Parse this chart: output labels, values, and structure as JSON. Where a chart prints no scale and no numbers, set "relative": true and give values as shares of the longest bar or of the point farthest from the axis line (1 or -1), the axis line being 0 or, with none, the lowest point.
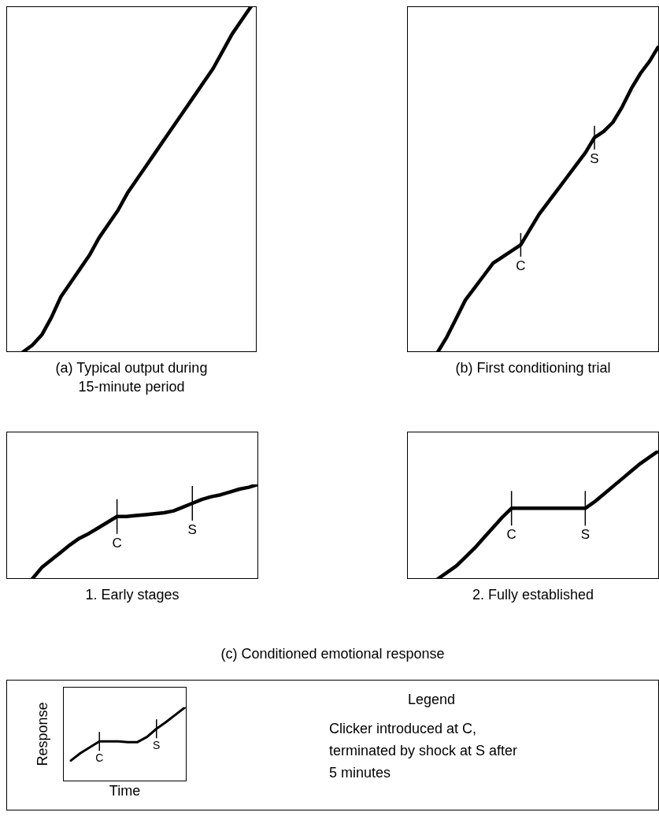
{
  "chart_data": [
    {
      "type": "line",
      "relative": true,
      "title": "(a) Typical output during 15-minute period",
      "categories": [
        null,
        null,
        null,
        null,
        null,
        null,
        null,
        null,
        null,
        null,
        null,
        null,
        null,
        null,
        null,
        null,
        null,
        null,
        null,
        null,
        null,
        null,
        null,
        null,
        null
      ],
      "series": [
        {
          "color": "#000000",
          "values": [
            0,
            0.02,
            0.05,
            0.1,
            0.16,
            0.2,
            0.24,
            0.28,
            0.33,
            0.37,
            0.41,
            0.46,
            0.5,
            0.54,
            0.58,
            0.62,
            0.66,
            0.7,
            0.74,
            0.78,
            0.82,
            0.87,
            0.92,
            0.96,
            1
          ]
        }
      ]
    },
    {
      "type": "line",
      "relative": true,
      "title": "(b) First conditioning trial",
      "categories": [
        null,
        null,
        null,
        null,
        null,
        null,
        null,
        null,
        null,
        "C",
        null,
        null,
        null,
        null,
        null,
        null,
        null,
        "S",
        null,
        null,
        null,
        null,
        null,
        null,
        null
      ],
      "series": [
        {
          "color": "#000000",
          "values": [
            0,
            0.05,
            0.11,
            0.17,
            0.21,
            0.25,
            0.29,
            0.31,
            0.33,
            0.35,
            0.4,
            0.45,
            0.49,
            0.53,
            0.57,
            0.61,
            0.65,
            0.7,
            0.72,
            0.75,
            0.8,
            0.86,
            0.91,
            0.95,
            1
          ]
        }
      ]
    },
    {
      "type": "line",
      "relative": true,
      "title": "1. Early stages",
      "annotations": [
        "(c) Conditioned emotional response"
      ],
      "categories": [
        null,
        null,
        null,
        null,
        null,
        null,
        null,
        null,
        null,
        "C",
        null,
        null,
        null,
        null,
        null,
        null,
        null,
        "S",
        null,
        null,
        null,
        null,
        null,
        null,
        null
      ],
      "series": [
        {
          "color": "#000000",
          "values": [
            0,
            0.12,
            0.2,
            0.28,
            0.36,
            0.43,
            0.48,
            0.54,
            0.6,
            0.66,
            0.66,
            0.67,
            0.68,
            0.69,
            0.7,
            0.72,
            0.76,
            0.8,
            0.84,
            0.87,
            0.89,
            0.92,
            0.95,
            0.97,
            1
          ]
        }
      ]
    },
    {
      "type": "line",
      "relative": true,
      "title": "2. Fully established",
      "categories": [
        null,
        null,
        null,
        null,
        null,
        null,
        null,
        null,
        "C",
        null,
        null,
        null,
        null,
        null,
        null,
        null,
        "S",
        null,
        null,
        null,
        null,
        null,
        null,
        null,
        null
      ],
      "series": [
        {
          "color": "#000000",
          "values": [
            0,
            0.05,
            0.1,
            0.17,
            0.24,
            0.32,
            0.4,
            0.48,
            0.55,
            0.55,
            0.55,
            0.55,
            0.55,
            0.55,
            0.55,
            0.55,
            0.55,
            0.6,
            0.66,
            0.72,
            0.78,
            0.84,
            0.9,
            0.95,
            1
          ]
        }
      ]
    },
    {
      "type": "line",
      "relative": true,
      "xlabel": "Time",
      "ylabel": "Response",
      "categories": [
        null,
        null,
        null,
        "C",
        null,
        null,
        null,
        null,
        null,
        "S",
        null,
        null,
        null
      ],
      "series": [
        {
          "color": "#000000",
          "values": [
            0.28,
            0.38,
            0.46,
            0.54,
            0.54,
            0.54,
            0.53,
            0.53,
            0.6,
            0.71,
            0.8,
            0.9,
            1
          ]
        }
      ]
    },
    {
      "type": "other",
      "title": "Legend",
      "annotations": [
        "Clicker introduced at C, terminated by shock at S after 5 minutes"
      ]
    }
  ]
}
